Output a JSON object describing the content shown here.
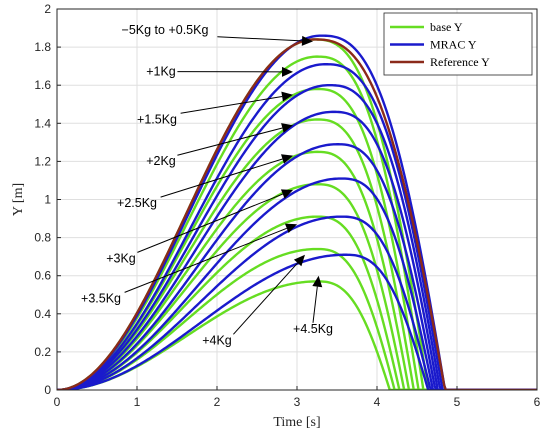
{
  "chart_data": {
    "type": "line",
    "title": "",
    "xlabel": "Time [s]",
    "ylabel": "Y [m]",
    "xlim": [
      0,
      6
    ],
    "ylim": [
      0,
      2
    ],
    "xticks": [
      "0",
      "1",
      "2",
      "3",
      "4",
      "5",
      "6"
    ],
    "yticks": [
      "0",
      "0.2",
      "0.4",
      "0.6",
      "0.8",
      "1",
      "1.2",
      "1.4",
      "1.6",
      "1.8",
      "2"
    ],
    "grid": true,
    "legend_position": "top-right",
    "legend": [
      {
        "label": "base Y",
        "color": "#66dd22"
      },
      {
        "label": "MRAC Y",
        "color": "#1a1acc"
      },
      {
        "label": "Reference Y",
        "color": "#8b2a1a"
      }
    ],
    "reference": {
      "name": "Reference Y",
      "color": "#8b2a1a",
      "peak_t": 3.22,
      "peak_y": 1.84,
      "end_t": 4.85
    },
    "base_series": {
      "name": "base Y",
      "color": "#66dd22",
      "peaks": [
        {
          "t": 3.22,
          "y": 1.84
        },
        {
          "t": 3.25,
          "y": 1.75
        },
        {
          "t": 3.25,
          "y": 1.58
        },
        {
          "t": 3.25,
          "y": 1.42
        },
        {
          "t": 3.25,
          "y": 1.25
        },
        {
          "t": 3.25,
          "y": 1.08
        },
        {
          "t": 3.25,
          "y": 0.91
        },
        {
          "t": 3.25,
          "y": 0.74
        },
        {
          "t": 3.25,
          "y": 0.57
        }
      ],
      "end_t": 4.1
    },
    "mrac_series": {
      "name": "MRAC Y",
      "color": "#1a1acc",
      "peaks": [
        {
          "t": 3.3,
          "y": 1.86
        },
        {
          "t": 3.35,
          "y": 1.71
        },
        {
          "t": 3.4,
          "y": 1.6
        },
        {
          "t": 3.45,
          "y": 1.46
        },
        {
          "t": 3.5,
          "y": 1.29
        },
        {
          "t": 3.55,
          "y": 1.11
        },
        {
          "t": 3.55,
          "y": 0.91
        },
        {
          "t": 3.6,
          "y": 0.71
        }
      ],
      "end_t": 4.85
    },
    "annotations": [
      {
        "text": "−5Kg to +0.5Kg",
        "tx": 1.35,
        "ty": 1.87,
        "ax": 3.2,
        "ay": 1.83
      },
      {
        "text": "+1Kg",
        "tx": 1.3,
        "ty": 1.65,
        "ax": 2.95,
        "ay": 1.67
      },
      {
        "text": "+1.5Kg",
        "tx": 1.25,
        "ty": 1.4,
        "ax": 2.95,
        "ay": 1.55
      },
      {
        "text": "+2Kg",
        "tx": 1.3,
        "ty": 1.18,
        "ax": 2.95,
        "ay": 1.39
      },
      {
        "text": "+2.5Kg",
        "tx": 1.0,
        "ty": 0.96,
        "ax": 2.95,
        "ay": 1.23
      },
      {
        "text": "+3Kg",
        "tx": 0.8,
        "ty": 0.67,
        "ax": 2.95,
        "ay": 1.05
      },
      {
        "text": "+3.5Kg",
        "tx": 0.55,
        "ty": 0.46,
        "ax": 3.0,
        "ay": 0.87
      },
      {
        "text": "+4Kg",
        "tx": 2.0,
        "ty": 0.24,
        "ax": 3.1,
        "ay": 0.71
      },
      {
        "text": "+4.5Kg",
        "tx": 3.2,
        "ty": 0.3,
        "ax": 3.27,
        "ay": 0.6
      }
    ]
  }
}
